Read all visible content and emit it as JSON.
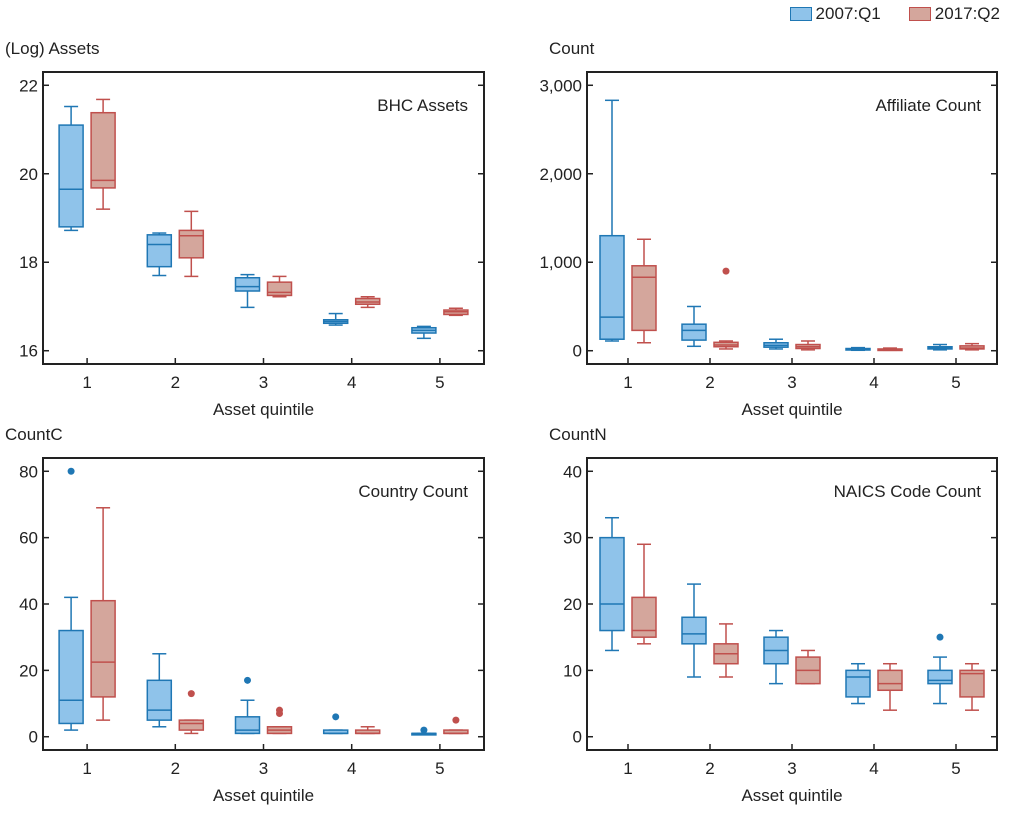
{
  "legend": {
    "series": [
      {
        "label": "2007:Q1",
        "fill": "#8fc3ea",
        "stroke": "#1f77b4"
      },
      {
        "label": "2017:Q2",
        "fill": "#d4a69c",
        "stroke": "#c0504d"
      }
    ]
  },
  "chart_data": [
    {
      "type": "box",
      "title": "BHC Assets",
      "ylabel": "(Log) Assets",
      "xlabel": "Asset quintile",
      "categories": [
        "1",
        "2",
        "3",
        "4",
        "5"
      ],
      "ylim": [
        15.7,
        22.3
      ],
      "yticks": [
        16,
        18,
        20,
        22
      ],
      "ytick_labels": [
        "16",
        "18",
        "20",
        "22"
      ],
      "series": [
        {
          "name": "2007:Q1",
          "boxes": [
            {
              "whislo": 18.72,
              "q1": 18.8,
              "med": 19.65,
              "q3": 21.1,
              "whishi": 21.52,
              "fliers": []
            },
            {
              "whislo": 17.7,
              "q1": 17.9,
              "med": 18.4,
              "q3": 18.62,
              "whishi": 18.66,
              "fliers": []
            },
            {
              "whislo": 16.98,
              "q1": 17.35,
              "med": 17.45,
              "q3": 17.65,
              "whishi": 17.72,
              "fliers": []
            },
            {
              "whislo": 16.58,
              "q1": 16.62,
              "med": 16.66,
              "q3": 16.7,
              "whishi": 16.84,
              "fliers": []
            },
            {
              "whislo": 16.28,
              "q1": 16.4,
              "med": 16.46,
              "q3": 16.52,
              "whishi": 16.55,
              "fliers": []
            }
          ]
        },
        {
          "name": "2017:Q2",
          "boxes": [
            {
              "whislo": 19.2,
              "q1": 19.68,
              "med": 19.85,
              "q3": 21.38,
              "whishi": 21.68,
              "fliers": []
            },
            {
              "whislo": 17.68,
              "q1": 18.1,
              "med": 18.6,
              "q3": 18.72,
              "whishi": 19.15,
              "fliers": []
            },
            {
              "whislo": 17.22,
              "q1": 17.25,
              "med": 17.32,
              "q3": 17.55,
              "whishi": 17.68,
              "fliers": []
            },
            {
              "whislo": 16.98,
              "q1": 17.05,
              "med": 17.1,
              "q3": 17.18,
              "whishi": 17.22,
              "fliers": []
            },
            {
              "whislo": 16.8,
              "q1": 16.82,
              "med": 16.88,
              "q3": 16.92,
              "whishi": 16.96,
              "fliers": []
            }
          ]
        }
      ]
    },
    {
      "type": "box",
      "title": "Affiliate Count",
      "ylabel": "Count",
      "xlabel": "Asset quintile",
      "categories": [
        "1",
        "2",
        "3",
        "4",
        "5"
      ],
      "ylim": [
        -150,
        3150
      ],
      "yticks": [
        0,
        1000,
        2000,
        3000
      ],
      "ytick_labels": [
        "0",
        "1,000",
        "2,000",
        "3,000"
      ],
      "series": [
        {
          "name": "2007:Q1",
          "boxes": [
            {
              "whislo": 110,
              "q1": 130,
              "med": 380,
              "q3": 1300,
              "whishi": 2830,
              "fliers": []
            },
            {
              "whislo": 50,
              "q1": 120,
              "med": 230,
              "q3": 300,
              "whishi": 500,
              "fliers": []
            },
            {
              "whislo": 20,
              "q1": 40,
              "med": 60,
              "q3": 90,
              "whishi": 130,
              "fliers": []
            },
            {
              "whislo": 5,
              "q1": 10,
              "med": 15,
              "q3": 25,
              "whishi": 35,
              "fliers": []
            },
            {
              "whislo": 10,
              "q1": 20,
              "med": 30,
              "q3": 45,
              "whishi": 70,
              "fliers": []
            }
          ]
        },
        {
          "name": "2017:Q2",
          "boxes": [
            {
              "whislo": 90,
              "q1": 230,
              "med": 830,
              "q3": 960,
              "whishi": 1260,
              "fliers": []
            },
            {
              "whislo": 20,
              "q1": 45,
              "med": 65,
              "q3": 95,
              "whishi": 110,
              "fliers": [
                900
              ]
            },
            {
              "whislo": 10,
              "q1": 25,
              "med": 45,
              "q3": 70,
              "whishi": 110,
              "fliers": []
            },
            {
              "whislo": 5,
              "q1": 8,
              "med": 12,
              "q3": 20,
              "whishi": 30,
              "fliers": []
            },
            {
              "whislo": 10,
              "q1": 20,
              "med": 30,
              "q3": 55,
              "whishi": 80,
              "fliers": []
            }
          ]
        }
      ]
    },
    {
      "type": "box",
      "title": "Country Count",
      "ylabel": "CountC",
      "xlabel": "Asset quintile",
      "categories": [
        "1",
        "2",
        "3",
        "4",
        "5"
      ],
      "ylim": [
        -4,
        84
      ],
      "yticks": [
        0,
        20,
        40,
        60,
        80
      ],
      "ytick_labels": [
        "0",
        "20",
        "40",
        "60",
        "80"
      ],
      "series": [
        {
          "name": "2007:Q1",
          "boxes": [
            {
              "whislo": 2,
              "q1": 4,
              "med": 11,
              "q3": 32,
              "whishi": 42,
              "fliers": [
                80
              ]
            },
            {
              "whislo": 3,
              "q1": 5,
              "med": 8,
              "q3": 17,
              "whishi": 25,
              "fliers": []
            },
            {
              "whislo": 1,
              "q1": 1,
              "med": 2,
              "q3": 6,
              "whishi": 11,
              "fliers": [
                17
              ]
            },
            {
              "whislo": 1,
              "q1": 1,
              "med": 1,
              "q3": 2,
              "whishi": 2,
              "fliers": [
                6
              ]
            },
            {
              "whislo": 1,
              "q1": 1,
              "med": 1,
              "q3": 1,
              "whishi": 1,
              "fliers": [
                2
              ]
            }
          ]
        },
        {
          "name": "2017:Q2",
          "boxes": [
            {
              "whislo": 5,
              "q1": 12,
              "med": 22.5,
              "q3": 41,
              "whishi": 69,
              "fliers": []
            },
            {
              "whislo": 1,
              "q1": 2,
              "med": 4,
              "q3": 5,
              "whishi": 5,
              "fliers": [
                13
              ]
            },
            {
              "whislo": 1,
              "q1": 1,
              "med": 2,
              "q3": 3,
              "whishi": 3,
              "fliers": [
                7,
                8
              ]
            },
            {
              "whislo": 1,
              "q1": 1,
              "med": 1,
              "q3": 2,
              "whishi": 3,
              "fliers": []
            },
            {
              "whislo": 1,
              "q1": 1,
              "med": 1,
              "q3": 2,
              "whishi": 2,
              "fliers": [
                5
              ]
            }
          ]
        }
      ]
    },
    {
      "type": "box",
      "title": "NAICS Code Count",
      "ylabel": "CountN",
      "xlabel": "Asset quintile",
      "categories": [
        "1",
        "2",
        "3",
        "4",
        "5"
      ],
      "ylim": [
        -2,
        42
      ],
      "yticks": [
        0,
        10,
        20,
        30,
        40
      ],
      "ytick_labels": [
        "0",
        "10",
        "20",
        "30",
        "40"
      ],
      "series": [
        {
          "name": "2007:Q1",
          "boxes": [
            {
              "whislo": 13,
              "q1": 16,
              "med": 20,
              "q3": 30,
              "whishi": 33,
              "fliers": []
            },
            {
              "whislo": 9,
              "q1": 14,
              "med": 15.5,
              "q3": 18,
              "whishi": 23,
              "fliers": []
            },
            {
              "whislo": 8,
              "q1": 11,
              "med": 13,
              "q3": 15,
              "whishi": 16,
              "fliers": []
            },
            {
              "whislo": 5,
              "q1": 6,
              "med": 9,
              "q3": 10,
              "whishi": 11,
              "fliers": []
            },
            {
              "whislo": 5,
              "q1": 8,
              "med": 8.5,
              "q3": 10,
              "whishi": 12,
              "fliers": [
                15
              ]
            }
          ]
        },
        {
          "name": "2017:Q2",
          "boxes": [
            {
              "whislo": 14,
              "q1": 15,
              "med": 16,
              "q3": 21,
              "whishi": 29,
              "fliers": []
            },
            {
              "whislo": 9,
              "q1": 11,
              "med": 12.5,
              "q3": 14,
              "whishi": 17,
              "fliers": []
            },
            {
              "whislo": 8,
              "q1": 8,
              "med": 10,
              "q3": 12,
              "whishi": 13,
              "fliers": []
            },
            {
              "whislo": 4,
              "q1": 7,
              "med": 8,
              "q3": 10,
              "whishi": 11,
              "fliers": []
            },
            {
              "whislo": 4,
              "q1": 6,
              "med": 9.5,
              "q3": 10,
              "whishi": 11,
              "fliers": []
            }
          ]
        }
      ]
    }
  ]
}
